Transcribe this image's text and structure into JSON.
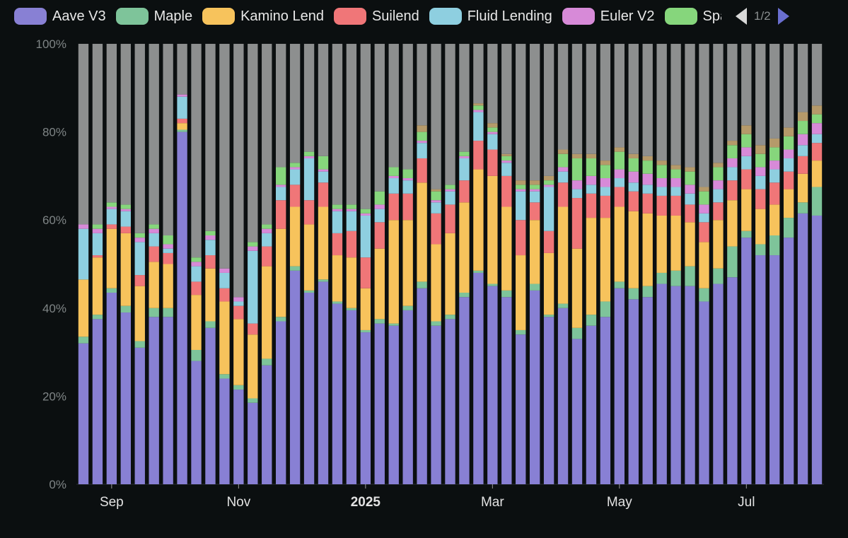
{
  "legend": {
    "items": [
      {
        "label": "Aave V3",
        "color": "#8880d4"
      },
      {
        "label": "Maple",
        "color": "#7ec49a"
      },
      {
        "label": "Kamino Lend",
        "color": "#f7c35c"
      },
      {
        "label": "Suilend",
        "color": "#f07678"
      },
      {
        "label": "Fluid Lending",
        "color": "#8ecfe0"
      },
      {
        "label": "Euler V2",
        "color": "#d78ad8"
      },
      {
        "label": "Spa",
        "color": "#86d67c"
      }
    ],
    "page_label": "1/2",
    "prev_icon": "chevron-left-icon",
    "next_icon": "chevron-right-icon"
  },
  "chart_data": {
    "type": "bar",
    "stacked": true,
    "ylim": [
      0,
      100
    ],
    "ytick_labels": [
      "0%",
      "20%",
      "40%",
      "60%",
      "80%",
      "100%"
    ],
    "xtick_labels": [
      {
        "label": "Sep",
        "bar_index": 2,
        "bold": false
      },
      {
        "label": "Nov",
        "bar_index": 11,
        "bold": false
      },
      {
        "label": "2025",
        "bar_index": 20,
        "bold": true
      },
      {
        "label": "Mar",
        "bar_index": 29,
        "bold": false
      },
      {
        "label": "May",
        "bar_index": 38,
        "bold": false
      },
      {
        "label": "Jul",
        "bar_index": 47,
        "bold": false
      }
    ],
    "series": [
      {
        "name": "Aave V3",
        "color": "#8880d4",
        "values": [
          32,
          37.5,
          43.5,
          39,
          31,
          38,
          38,
          80,
          28,
          35.5,
          24,
          21.5,
          18.5,
          27,
          37,
          48.5,
          43.5,
          46,
          41,
          39.5,
          34.5,
          36.5,
          36,
          39.5,
          44.5,
          36,
          37.5,
          42.5,
          48,
          45,
          42.5,
          34,
          44,
          38,
          40,
          33,
          36,
          38,
          44.5,
          42,
          42.5,
          45.5,
          45,
          45,
          41.5,
          45.5,
          47,
          56,
          52,
          52,
          56,
          61.5,
          61
        ]
      },
      {
        "name": "Maple",
        "color": "#7ec49a",
        "values": [
          1.5,
          1,
          1,
          1.5,
          1.5,
          2,
          2,
          0.5,
          2.5,
          1.5,
          1,
          1,
          1,
          1.5,
          1,
          1,
          0.5,
          0.5,
          0.5,
          0.5,
          0.5,
          1,
          0.5,
          1,
          1.5,
          1,
          1,
          1,
          0.5,
          0.5,
          1.5,
          1,
          1.5,
          0.5,
          1,
          2.5,
          2.5,
          3.5,
          1.5,
          2.5,
          2.5,
          2.5,
          3.5,
          4.5,
          3,
          3.5,
          7,
          1.5,
          2.5,
          4.5,
          4.5,
          2.5,
          6.5
        ]
      },
      {
        "name": "Kamino Lend",
        "color": "#f7c35c",
        "values": [
          13,
          13,
          13.5,
          16.5,
          12.5,
          10.5,
          10,
          1.5,
          12.5,
          12,
          16.5,
          15,
          14.5,
          21,
          20,
          13.5,
          15,
          16.5,
          10.5,
          11.5,
          9.5,
          16,
          23.5,
          19.5,
          22.5,
          17.5,
          18.5,
          20.5,
          23,
          24.5,
          19,
          17,
          14.5,
          14,
          22,
          18,
          22,
          19,
          17,
          17.5,
          16.5,
          13,
          12.5,
          10,
          10.5,
          11,
          10.5,
          9.5,
          8,
          7,
          6.5,
          6.5,
          6
        ]
      },
      {
        "name": "Suilend",
        "color": "#f07678",
        "values": [
          0,
          0.5,
          1,
          1.5,
          2.5,
          3.5,
          2.5,
          1,
          3,
          3,
          3,
          3,
          2.5,
          4.5,
          6.5,
          5,
          5.5,
          5.5,
          5,
          6,
          7,
          6,
          6,
          6,
          5.5,
          7,
          6.5,
          5,
          6.5,
          6,
          7,
          8,
          4,
          5,
          5.5,
          11.5,
          5.5,
          5,
          4.5,
          4.5,
          4.5,
          4.5,
          4.5,
          4,
          4.5,
          4,
          4.5,
          4.5,
          4.5,
          5,
          4,
          4,
          4
        ]
      },
      {
        "name": "Fluid Lending",
        "color": "#8ecfe0",
        "values": [
          11.5,
          5,
          3.5,
          3.5,
          7.5,
          3,
          1,
          5,
          3.5,
          3.5,
          3.5,
          1,
          16.5,
          3,
          3,
          3.5,
          9.5,
          2.5,
          5,
          4.5,
          9.5,
          3,
          3.5,
          3,
          3.5,
          2.5,
          3,
          5,
          6.5,
          3.5,
          3,
          6.5,
          2.5,
          10,
          2.5,
          2,
          2,
          2,
          2,
          2,
          2,
          2,
          2,
          2.5,
          2,
          3,
          3,
          3,
          3,
          3,
          3,
          2.5,
          2
        ]
      },
      {
        "name": "Euler V2",
        "color": "#d78ad8",
        "values": [
          1,
          1,
          0.5,
          0.5,
          1,
          1,
          1,
          0.5,
          1,
          1,
          1,
          1,
          1,
          1,
          0.5,
          0.5,
          0.5,
          0.5,
          0.5,
          0.5,
          0.5,
          1,
          0.5,
          0.5,
          0.5,
          0.5,
          0.5,
          0.5,
          0.5,
          0.5,
          0.5,
          0.5,
          0.5,
          0.5,
          1,
          2,
          2,
          2,
          2,
          2.5,
          2.5,
          2,
          2,
          2,
          2,
          2,
          2,
          2,
          2,
          2,
          2,
          2.5,
          2.5
        ]
      },
      {
        "name": "Spa",
        "color": "#86d67c",
        "values": [
          0,
          1,
          1,
          1,
          1,
          1,
          2,
          0,
          1,
          1,
          0,
          0,
          1,
          1,
          4,
          1,
          1,
          3,
          1,
          1,
          1,
          3,
          2,
          2,
          2,
          2,
          1,
          1,
          1,
          1,
          1,
          1,
          1,
          1,
          3,
          5,
          4,
          3,
          4,
          3,
          3,
          3,
          2,
          3,
          3,
          3,
          3,
          3,
          3,
          3,
          3,
          3,
          2
        ]
      },
      {
        "name": "Other",
        "color": "#b59a6a",
        "values": [
          0,
          0,
          0,
          0,
          0,
          0,
          0,
          0,
          0,
          0,
          0,
          0,
          0,
          0,
          0,
          0,
          0,
          0,
          0,
          0,
          0,
          0,
          0,
          0,
          1.5,
          0.5,
          0,
          0,
          0.5,
          1,
          0.5,
          1,
          1,
          1,
          1,
          1,
          1,
          1,
          1,
          1,
          1,
          1,
          1,
          1,
          1,
          1,
          1,
          2,
          2,
          2,
          2,
          2,
          2
        ]
      }
    ],
    "remainder_color": "#8d8f8f"
  }
}
